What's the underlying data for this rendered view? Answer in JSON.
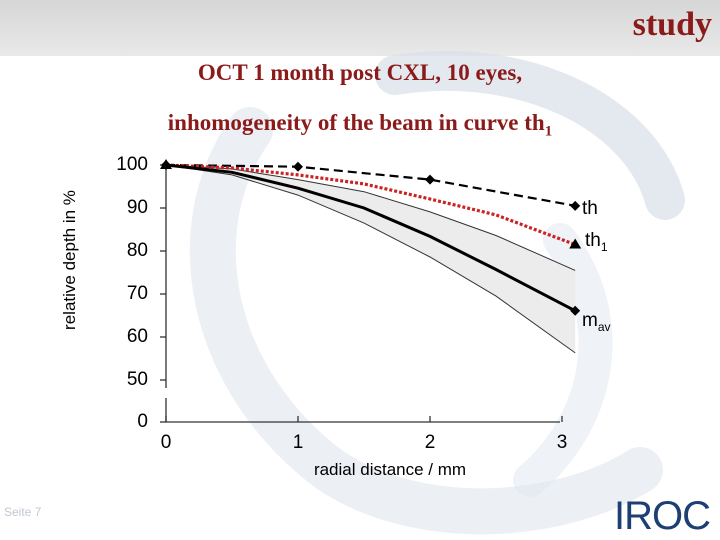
{
  "header": {
    "corner_label": "study"
  },
  "footer": {
    "page_label": "Seite 7",
    "logo_text": "IROC"
  },
  "colors": {
    "title": "#8b1a1a",
    "th1": "#cc2222",
    "band": "#ececec"
  },
  "chart_data": {
    "type": "line",
    "title": "OCT 1 month post CXL, 10 eyes,",
    "subtitle": "inhomogeneity of the beam in curve th",
    "subtitle_sub": "1",
    "xlabel": "radial distance / mm",
    "ylabel": "relative depth in %",
    "x_ticks": [
      "0",
      "1",
      "2",
      "3"
    ],
    "y_ticks": [
      "0",
      "50",
      "60",
      "70",
      "80",
      "90",
      "100"
    ],
    "xlim": [
      0,
      3.2
    ],
    "ylim": [
      50,
      100
    ],
    "axis_break": true,
    "series": [
      {
        "name": "th",
        "style": "dashed-black-diamonds",
        "x": [
          0,
          1,
          2,
          3.1
        ],
        "y": [
          100,
          99.6,
          96.6,
          90.5
        ]
      },
      {
        "name": "th",
        "name_sub": "1",
        "style": "dotted-red-triangles",
        "x": [
          0,
          0.5,
          1,
          1.5,
          2,
          2.5,
          3.1
        ],
        "y": [
          100,
          99.3,
          97.7,
          95.6,
          92.1,
          88.4,
          81.5
        ]
      },
      {
        "name": "m",
        "name_sub": "av",
        "style": "solid-black",
        "x": [
          0,
          0.5,
          1,
          1.5,
          2,
          2.5,
          3.1
        ],
        "y": [
          100,
          98.3,
          94.6,
          90,
          83.4,
          75.7,
          66.1
        ]
      }
    ],
    "band": {
      "x": [
        0,
        0.5,
        1,
        1.5,
        2,
        2.5,
        3.1
      ],
      "upper": [
        100,
        99.1,
        96.6,
        93.8,
        89.1,
        83.6,
        75.5
      ],
      "lower": [
        100,
        97.7,
        93,
        86.5,
        78.6,
        69.5,
        56.3
      ]
    }
  }
}
